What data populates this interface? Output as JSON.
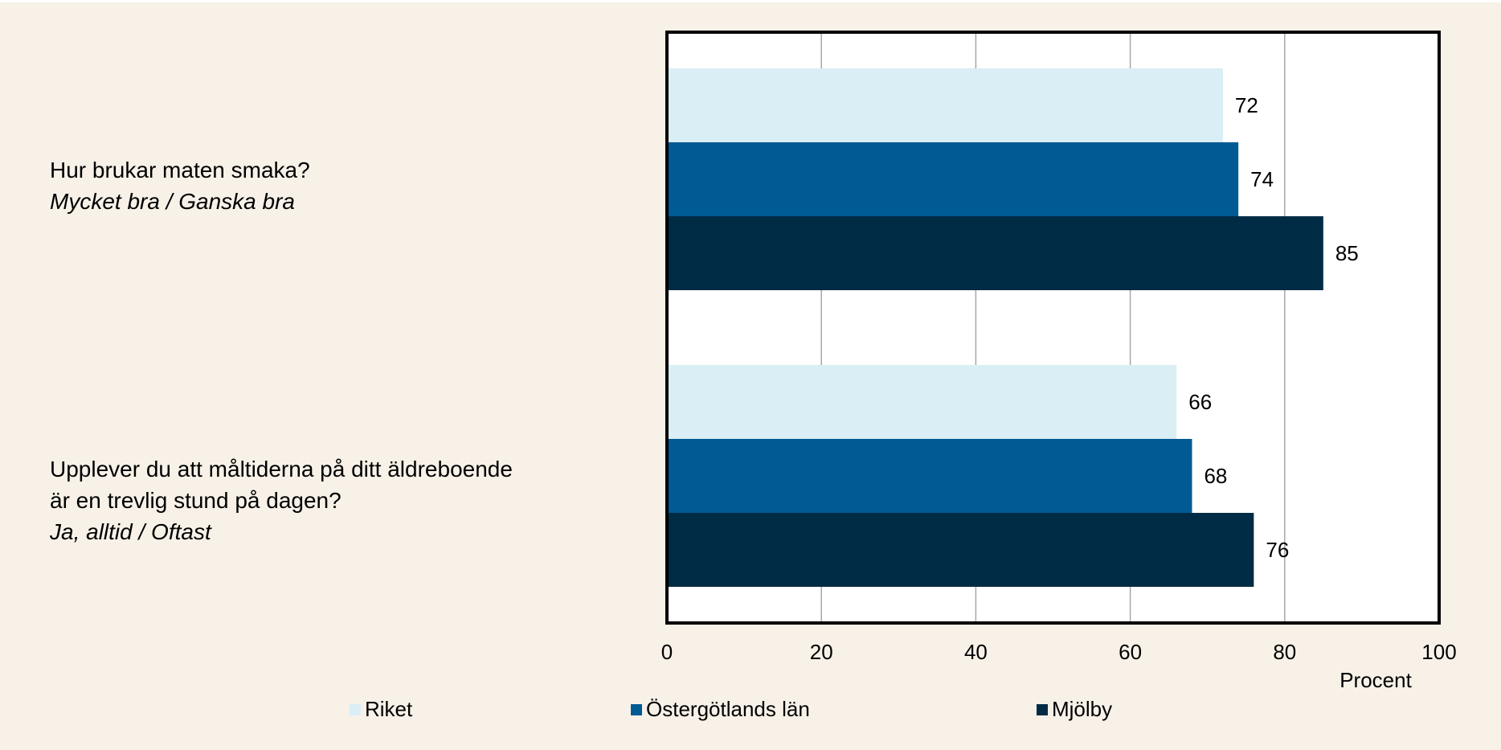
{
  "chart_data": {
    "type": "bar",
    "orientation": "horizontal",
    "categories": [
      {
        "question_lines": [
          "Hur brukar maten smaka?"
        ],
        "response": "Mycket bra / Ganska bra"
      },
      {
        "question_lines": [
          "Upplever du att måltiderna på ditt äldreboende",
          "är en trevlig stund på dagen?"
        ],
        "response": "Ja, alltid / Oftast"
      }
    ],
    "series": [
      {
        "name": "Riket",
        "color": "#daeef5",
        "values": [
          72,
          66
        ]
      },
      {
        "name": "Östergötlands län",
        "color": "#005a94",
        "values": [
          74,
          68
        ]
      },
      {
        "name": "Mjölby",
        "color": "#002b45",
        "values": [
          85,
          76
        ]
      }
    ],
    "xlim": [
      0,
      100
    ],
    "xticks": [
      0,
      20,
      40,
      60,
      80,
      100
    ],
    "xlabel": "Procent",
    "grid": true,
    "legend_position": "bottom"
  }
}
